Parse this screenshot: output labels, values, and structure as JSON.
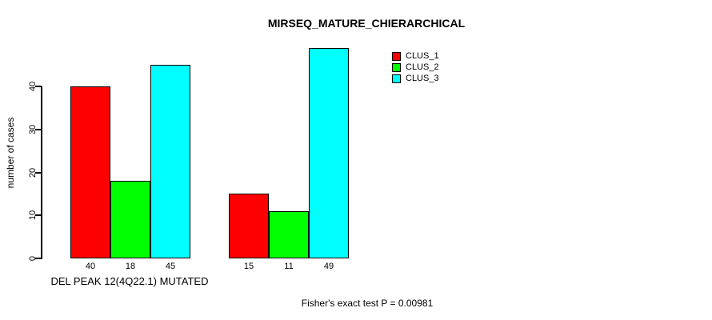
{
  "chart_data": {
    "type": "bar",
    "title": "MIRSEQ_MATURE_CHIERARCHICAL",
    "ylabel": "number of cases",
    "group_label": "DEL PEAK 12(4Q22.1) MUTATED",
    "series": [
      {
        "name": "CLUS_1",
        "color": "#ff0000",
        "values": [
          40,
          15
        ]
      },
      {
        "name": "CLUS_2",
        "color": "#00ff00",
        "values": [
          18,
          11
        ]
      },
      {
        "name": "CLUS_3",
        "color": "#00ffff",
        "values": [
          45,
          49
        ]
      }
    ],
    "y_ticks": [
      0,
      10,
      20,
      30,
      40
    ],
    "ylim": [
      0,
      49
    ],
    "show_bar_values": true,
    "legend_position": "top-right",
    "legend_entries": [
      "CLUS_1",
      "CLUS_2",
      "CLUS_3"
    ],
    "annotation": "Fisher's exact test P = 0.00981",
    "grid": false,
    "background": "#ffffff",
    "axis_color": "#000000"
  }
}
